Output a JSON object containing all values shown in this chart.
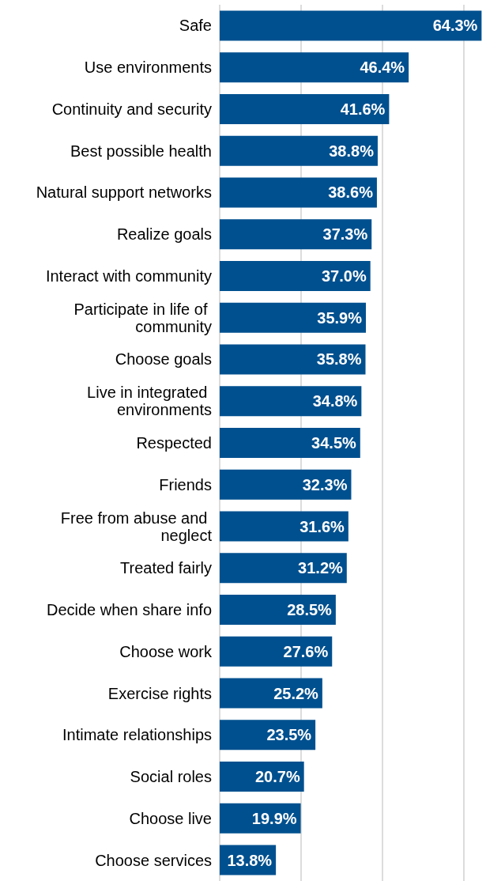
{
  "chart_data": {
    "type": "bar",
    "orientation": "horizontal",
    "categories": [
      "Safe",
      "Use environments",
      "Continuity and security",
      "Best possible health",
      "Natural support networks",
      "Realize goals",
      "Interact with community",
      "Participate in life of community",
      "Choose goals",
      "Live in integrated environments",
      "Respected",
      "Friends",
      "Free from abuse and neglect",
      "Treated fairly",
      "Decide when share info",
      "Choose work",
      "Exercise rights",
      "Intimate relationships",
      "Social roles",
      "Choose live",
      "Choose services"
    ],
    "values": [
      64.3,
      46.4,
      41.6,
      38.8,
      38.6,
      37.3,
      37.0,
      35.9,
      35.8,
      34.8,
      34.5,
      32.3,
      31.6,
      31.2,
      28.5,
      27.6,
      25.2,
      23.5,
      20.7,
      19.9,
      13.8
    ],
    "value_labels": [
      "64.3%",
      "46.4%",
      "41.6%",
      "38.8%",
      "38.6%",
      "37.3%",
      "37.0%",
      "35.9%",
      "35.8%",
      "34.8%",
      "34.5%",
      "32.3%",
      "31.6%",
      "31.2%",
      "28.5%",
      "27.6%",
      "25.2%",
      "23.5%",
      "20.7%",
      "19.9%",
      "13.8%"
    ],
    "color": "#00508f",
    "xlim": [
      0,
      65
    ],
    "xticks": [
      {
        "value": 0,
        "label": null
      },
      {
        "value": 20,
        "label": null
      },
      {
        "value": 40,
        "label": null
      },
      {
        "value": 60,
        "label": null
      }
    ],
    "grid": "x",
    "tick_labels": "y"
  }
}
